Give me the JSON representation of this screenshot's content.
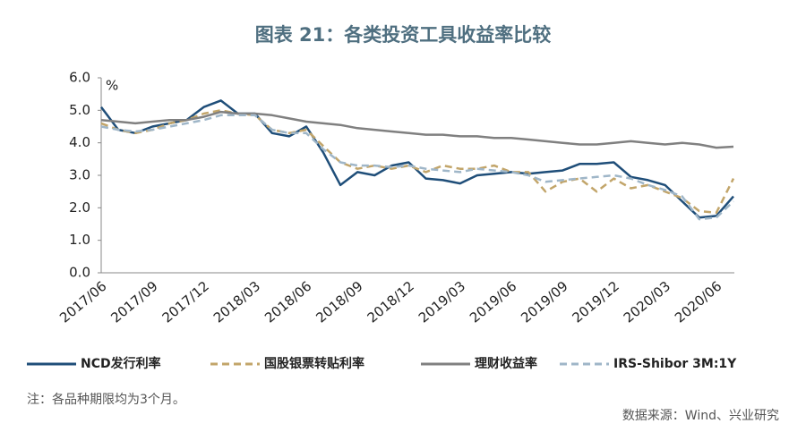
{
  "chart_data": {
    "type": "line",
    "title": "图表 21：各类投资工具收益率比较",
    "y_unit": "%",
    "note": "注：各品种期限均为3个月。",
    "source": "数据来源：Wind、兴业研究",
    "categories": [
      "2017/06",
      null,
      null,
      "2017/09",
      null,
      null,
      "2017/12",
      null,
      null,
      "2018/03",
      null,
      null,
      "2018/06",
      null,
      null,
      "2018/09",
      null,
      null,
      "2018/12",
      null,
      null,
      "2019/03",
      null,
      null,
      "2019/06",
      null,
      null,
      "2019/09",
      null,
      null,
      "2019/12",
      null,
      null,
      "2020/03",
      null,
      null,
      "2020/06",
      null
    ],
    "series": [
      {
        "name": "NCD发行利率",
        "color": "#1f4e79",
        "dashed": false,
        "values": [
          5.1,
          4.4,
          4.3,
          4.5,
          4.6,
          4.7,
          5.1,
          5.3,
          4.9,
          4.9,
          4.3,
          4.2,
          4.5,
          3.7,
          2.7,
          3.1,
          3.0,
          3.3,
          3.4,
          2.9,
          2.85,
          2.75,
          3.0,
          3.05,
          3.1,
          3.05,
          3.1,
          3.15,
          3.35,
          3.35,
          3.4,
          2.95,
          2.85,
          2.7,
          2.2,
          1.7,
          1.75,
          2.35
        ]
      },
      {
        "name": "国股银票转贴利率",
        "color": "#c2a56a",
        "dashed": true,
        "values": [
          4.6,
          4.4,
          4.3,
          4.4,
          4.6,
          4.7,
          4.9,
          5.0,
          4.9,
          4.85,
          4.4,
          4.3,
          4.4,
          3.9,
          3.4,
          3.2,
          3.3,
          3.2,
          3.3,
          3.1,
          3.3,
          3.2,
          3.2,
          3.3,
          3.1,
          3.1,
          2.5,
          2.8,
          2.9,
          2.5,
          2.9,
          2.6,
          2.7,
          2.5,
          2.3,
          1.9,
          1.85,
          2.9
        ]
      },
      {
        "name": "理财收益率",
        "color": "#808080",
        "dashed": false,
        "values": [
          4.7,
          4.65,
          4.6,
          4.65,
          4.7,
          4.7,
          4.8,
          4.95,
          4.9,
          4.9,
          4.85,
          4.75,
          4.65,
          4.6,
          4.55,
          4.45,
          4.4,
          4.35,
          4.3,
          4.25,
          4.25,
          4.2,
          4.2,
          4.15,
          4.15,
          4.1,
          4.05,
          4.0,
          3.95,
          3.95,
          4.0,
          4.05,
          4.0,
          3.95,
          4.0,
          3.95,
          3.85,
          3.88
        ]
      },
      {
        "name": "IRS-Shibor 3M:1Y",
        "color": "#9fb6c8",
        "dashed": true,
        "values": [
          4.5,
          4.4,
          4.35,
          4.4,
          4.5,
          4.6,
          4.7,
          4.85,
          4.85,
          4.85,
          4.4,
          4.3,
          4.3,
          3.8,
          3.4,
          3.3,
          3.3,
          3.25,
          3.3,
          3.2,
          3.15,
          3.1,
          3.2,
          3.15,
          3.1,
          3.0,
          2.8,
          2.85,
          2.9,
          2.95,
          3.0,
          2.9,
          2.7,
          2.55,
          2.35,
          1.65,
          1.7,
          2.2
        ]
      }
    ],
    "ylim": [
      0,
      6
    ],
    "yticks": [
      {
        "value": 0,
        "label": "0.0"
      },
      {
        "value": 1,
        "label": "1.0"
      },
      {
        "value": 2,
        "label": "2.0"
      },
      {
        "value": 3,
        "label": "3.0"
      },
      {
        "value": 4,
        "label": "4.0"
      },
      {
        "value": 5,
        "label": "5.0"
      },
      {
        "value": 6,
        "label": "6.0"
      }
    ]
  }
}
